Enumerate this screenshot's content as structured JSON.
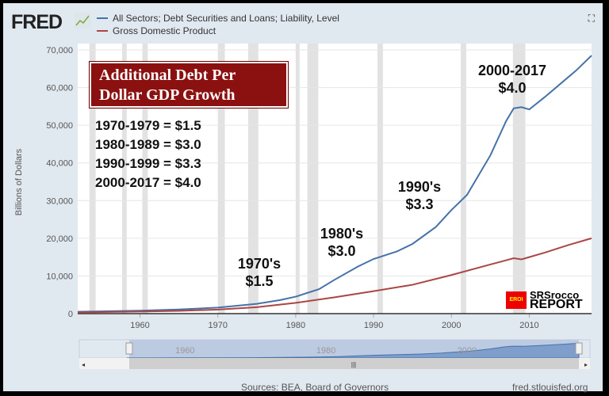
{
  "header": {
    "logo": "FRED",
    "expand_icon": "expand-icon"
  },
  "footer": {
    "sources": "Sources: BEA, Board of Governors",
    "url": "fred.stlouisfed.org"
  },
  "annotations": {
    "title_line1": "Additional Debt Per",
    "title_line2": "Dollar GDP Growth",
    "list": [
      "1970-1979 = $1.5",
      "1980-1989 = $3.0",
      "1990-1999 = $3.3",
      "2000-2017 = $4.0"
    ],
    "a70": [
      "1970's",
      "$1.5"
    ],
    "a80": [
      "1980's",
      "$3.0"
    ],
    "a90": [
      "1990's",
      "$3.3"
    ],
    "a00": [
      "2000-2017",
      "$4.0"
    ],
    "watermark_line1": "SRSrocco",
    "watermark_line2": "REPORT",
    "watermark_badge": "EROI"
  },
  "navigator": {
    "ticks": [
      "1960",
      "1980",
      "2000"
    ]
  },
  "chart_data": {
    "type": "line",
    "ylabel": "Billions of Dollars",
    "xlim": [
      1952,
      2018
    ],
    "ylim": [
      0,
      70000
    ],
    "xticks": [
      1960,
      1970,
      1980,
      1990,
      2000,
      2010
    ],
    "yticks": [
      0,
      10000,
      20000,
      30000,
      40000,
      50000,
      60000,
      70000
    ],
    "ytick_labels": [
      "0",
      "10,000",
      "20,000",
      "30,000",
      "40,000",
      "50,000",
      "60,000",
      "70,000"
    ],
    "recessions": [
      [
        1953.5,
        1954.3
      ],
      [
        1957.7,
        1958.3
      ],
      [
        1960.3,
        1961.0
      ],
      [
        1970.0,
        1970.9
      ],
      [
        1973.9,
        1975.2
      ],
      [
        1980.0,
        1980.5
      ],
      [
        1981.5,
        1982.9
      ],
      [
        1990.5,
        1991.2
      ],
      [
        2001.2,
        2001.9
      ],
      [
        2007.9,
        2009.5
      ]
    ],
    "series": [
      {
        "name": "All Sectors; Debt Securities and Loans; Liability, Level",
        "color": "#4572a7",
        "x": [
          1952,
          1955,
          1960,
          1965,
          1970,
          1975,
          1978,
          1980,
          1983,
          1985,
          1988,
          1990,
          1993,
          1995,
          1998,
          2000,
          2002,
          2005,
          2007,
          2008,
          2009,
          2010,
          2012,
          2014,
          2016,
          2018
        ],
        "y": [
          500,
          600,
          800,
          1100,
          1600,
          2600,
          3600,
          4500,
          6500,
          9000,
          12500,
          14500,
          16500,
          18500,
          23000,
          27500,
          31500,
          42000,
          51000,
          54500,
          54800,
          54200,
          57500,
          61000,
          64500,
          68500
        ]
      },
      {
        "name": "Gross Domestic Product",
        "color": "#aa4643",
        "x": [
          1952,
          1960,
          1965,
          1970,
          1975,
          1980,
          1985,
          1990,
          1995,
          2000,
          2005,
          2008,
          2009,
          2010,
          2012,
          2015,
          2018
        ],
        "y": [
          360,
          540,
          740,
          1070,
          1700,
          2860,
          4340,
          5960,
          7660,
          10250,
          13040,
          14700,
          14400,
          15000,
          16200,
          18200,
          20000
        ]
      }
    ]
  }
}
